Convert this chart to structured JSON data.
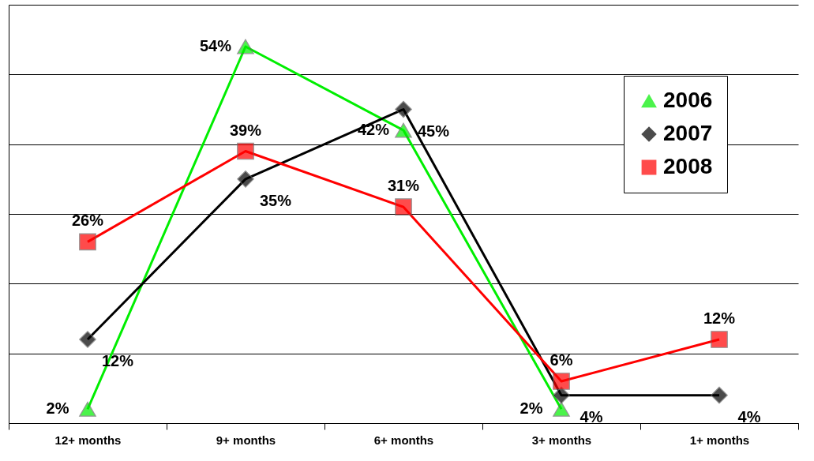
{
  "chart_data": {
    "type": "line",
    "categories": [
      "12+ months",
      "9+ months",
      "6+ months",
      "3+ months",
      "1+ months"
    ],
    "series": [
      {
        "name": "2006",
        "color": "#00ee00",
        "marker": "triangle",
        "values": [
          2,
          54,
          42,
          2,
          null
        ],
        "value_labels": [
          "2%",
          "54%",
          "42%",
          "2%",
          null
        ]
      },
      {
        "name": "2007",
        "color": "#000000",
        "marker": "diamond",
        "values": [
          12,
          35,
          45,
          4,
          4
        ],
        "value_labels": [
          "12%",
          "35%",
          "45%",
          "4%",
          "4%"
        ]
      },
      {
        "name": "2008",
        "color": "#ff0000",
        "marker": "square",
        "values": [
          26,
          39,
          31,
          6,
          12
        ],
        "value_labels": [
          "26%",
          "39%",
          "31%",
          "6%",
          "12%"
        ]
      }
    ],
    "tick_labels": "x",
    "grid": "y",
    "legend": "top right"
  }
}
